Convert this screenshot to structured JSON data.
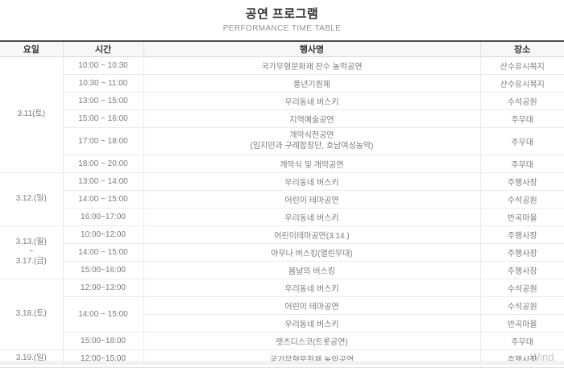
{
  "header": {
    "title": "공연 프로그램",
    "subtitle": "PERFORMANCE TIME TABLE"
  },
  "table": {
    "columns": [
      "요일",
      "시간",
      "행사명",
      "장소"
    ],
    "groups": [
      {
        "day_lines": [
          "3.11(토)"
        ],
        "rows": [
          {
            "time": "10:00 ~ 10:30",
            "event": "국가무형문화재 잔수 농악공연",
            "place": "산수유시목지"
          },
          {
            "time": "10:30 ~ 11:00",
            "event": "풍년기원제",
            "place": "산수유시목지"
          },
          {
            "time": "13:00 ~ 15:00",
            "event": "우리동네 버스키",
            "place": "수석공원"
          },
          {
            "time": "15:00 ~ 16:00",
            "event": "지역예술공연",
            "place": "주무대"
          },
          {
            "time": "17:00 ~ 18:00",
            "event": "개막식전공연",
            "event_sub": "(임지민과 구례합창단, 호남여성농악)",
            "place": "주무대"
          },
          {
            "time": "18:00 ~ 20:00",
            "event": "개막식 및 개막공연",
            "place": "주무대"
          }
        ]
      },
      {
        "day_lines": [
          "3.12.(일)"
        ],
        "rows": [
          {
            "time": "13:00 ~ 14:00",
            "event": "우리동네 버스키",
            "place": "주행사장"
          },
          {
            "time": "14:00 ~ 15:00",
            "event": "어린이 테마공연",
            "place": "수석공원"
          },
          {
            "time": "16:00~17:00",
            "event": "우리동네 버스키",
            "place": "반곡마을"
          }
        ]
      },
      {
        "day_lines": [
          "3.13.(월)",
          "~",
          "3.17.(금)"
        ],
        "rows": [
          {
            "time": "10:00~12:00",
            "event": "어린이테마공연(3.14.)",
            "place": "주행사장"
          },
          {
            "time": "14:00 ~ 15:00",
            "event": "아무나 버스킹(열린무대)",
            "place": "주행사장"
          },
          {
            "time": "15:00~16:00",
            "event": "봄날의 버스킹",
            "place": "주행사장"
          }
        ]
      },
      {
        "day_lines": [
          "3.18.(토)"
        ],
        "rows": [
          {
            "time": "12:00~13:00",
            "event": "우리동네 버스키",
            "place": "수석공원"
          },
          {
            "time": "14:00 ~ 15:00",
            "time_rowspan": 2,
            "event": "어린이 테마공연",
            "place": "수석공원"
          },
          {
            "time": null,
            "event": "우리동네 버스키",
            "place": "반곡마을"
          },
          {
            "time": "15:00~18:00",
            "event": "렛츠디스코(트롯공연)",
            "place": "주무대"
          }
        ]
      },
      {
        "day_lines": [
          "3.19.(일)"
        ],
        "rows": [
          {
            "time": "12:00~15:00",
            "event": "국가무형문화재 농악공연",
            "place": "주행사장"
          }
        ]
      }
    ]
  },
  "watermark": "Wind"
}
